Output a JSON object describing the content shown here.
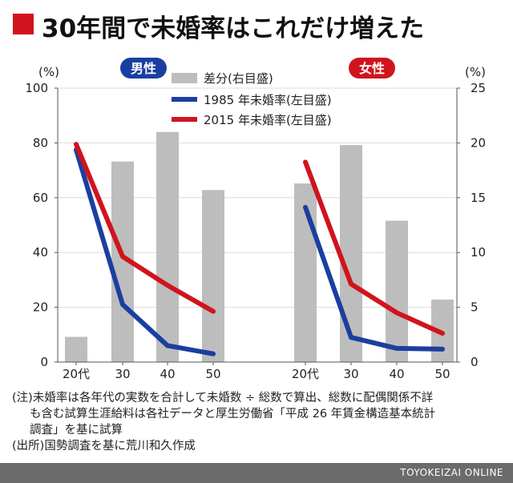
{
  "title": "30年間で未婚率はこれだけ増えた",
  "left_axis_unit": "(%)",
  "right_axis_unit": "(%)",
  "notes": {
    "line1": "(注)未婚率は各年代の実数を合計して未婚数 ÷ 総数で算出、総数に配偶関係不詳",
    "line2": "も含む試算生涯給料は各社データと厚生労働省「平成 26 年賃金構造基本統計",
    "line3": "調査」を基に試算",
    "line4": "(出所)国勢調査を基に荒川和久作成"
  },
  "footer": "TOYOKEIZAI ONLINE",
  "colors": {
    "bar": "#bdbdbd",
    "line1985": "#1a3fa0",
    "line2015": "#d0141e",
    "male_badge": "#1a3fa0",
    "female_badge": "#d0141e"
  },
  "chart_data": {
    "type": "bar+line",
    "left_axis": {
      "ylim": [
        0,
        100
      ],
      "ticks": [
        "0",
        "20",
        "40",
        "60",
        "80",
        "100"
      ]
    },
    "right_axis": {
      "ylim": [
        0,
        25
      ],
      "ticks": [
        "0",
        "5",
        "10",
        "15",
        "20",
        "25"
      ]
    },
    "legend": [
      "差分(右目盛)",
      "1985 年未婚率(左目盛)",
      "2015 年未婚率(左目盛)"
    ],
    "panels": [
      {
        "label": "男性",
        "categories": [
          "20代",
          "30",
          "40",
          "50"
        ],
        "diff": [
          2.3,
          18.3,
          21.0,
          15.7
        ],
        "rate1985": [
          77.5,
          21.0,
          6.0,
          3.0
        ],
        "rate2015": [
          79.5,
          38.5,
          28.0,
          18.5
        ]
      },
      {
        "label": "女性",
        "categories": [
          "20代",
          "30",
          "40",
          "50"
        ],
        "diff": [
          16.3,
          19.8,
          12.9,
          5.7
        ],
        "rate1985": [
          56.5,
          9.0,
          5.0,
          4.7
        ],
        "rate2015": [
          73.0,
          28.5,
          18.0,
          10.5
        ]
      }
    ]
  }
}
